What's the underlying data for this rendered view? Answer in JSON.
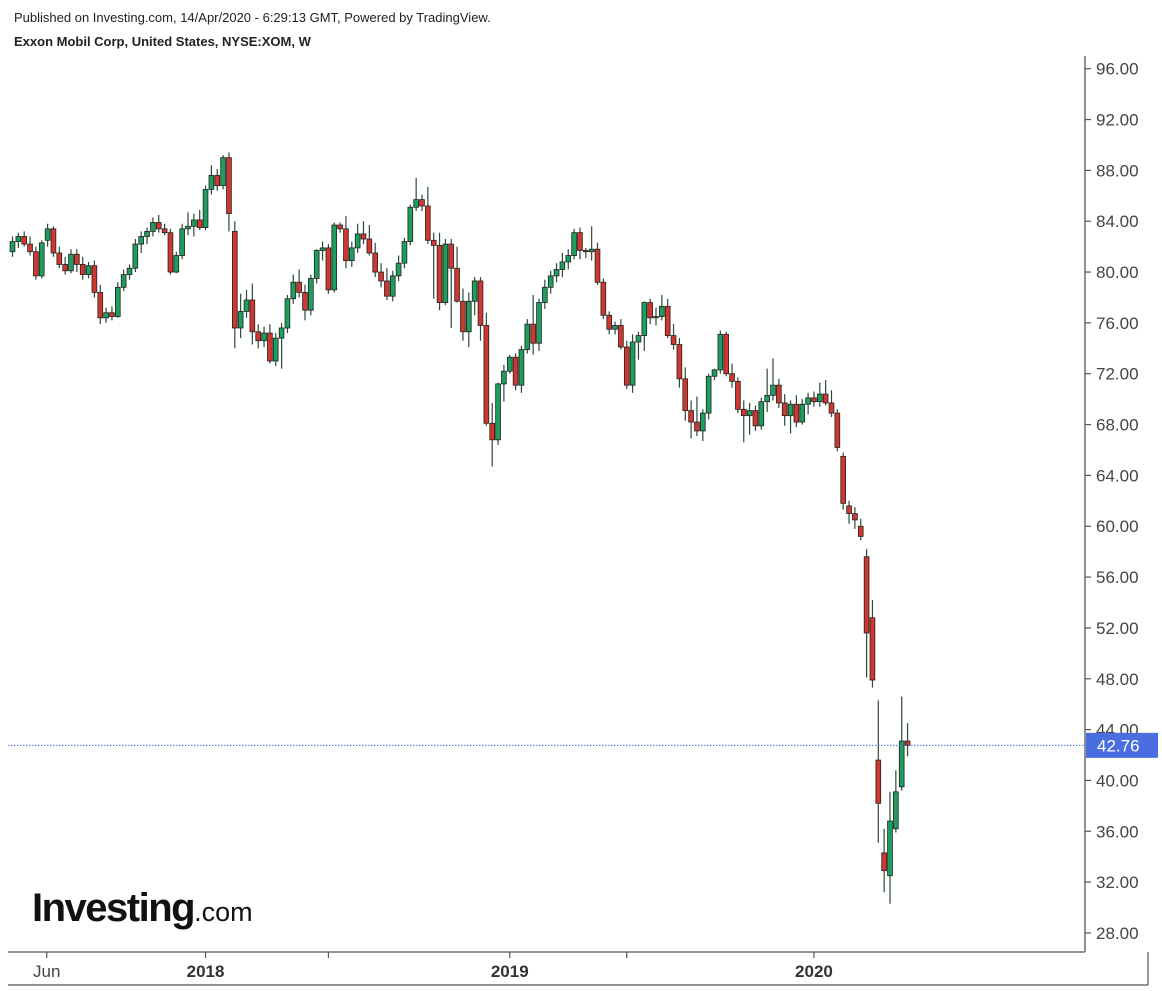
{
  "header": {
    "published": "Published on Investing.com, 14/Apr/2020 - 6:29:13 GMT, Powered by TradingView.",
    "symbol_line": "Exxon Mobil Corp, United States, NYSE:XOM, W"
  },
  "logo": {
    "main": "Investing",
    "suffix": ".com"
  },
  "colors": {
    "up": "#1e9e5e",
    "down": "#d0372f",
    "wick": "#2b4a3a",
    "price_line": "#4a6ee0",
    "axis": "#555555"
  },
  "chart_data": {
    "type": "candlestick",
    "interval": "W",
    "ylim": [
      26.5,
      97
    ],
    "y_ticks": [
      "96.00",
      "92.00",
      "88.00",
      "84.00",
      "80.00",
      "76.00",
      "72.00",
      "68.00",
      "64.00",
      "60.00",
      "56.00",
      "52.00",
      "48.00",
      "44.00",
      "40.00",
      "36.00",
      "32.00",
      "28.00"
    ],
    "x_ticks": [
      {
        "label": "Jun",
        "index": 5,
        "bold": false
      },
      {
        "label": "2018",
        "index": 33,
        "bold": true
      },
      {
        "label": "",
        "index": 54,
        "bold": false
      },
      {
        "label": "2019",
        "index": 85,
        "bold": true
      },
      {
        "label": "",
        "index": 105,
        "bold": false
      },
      {
        "label": "2020",
        "index": 137,
        "bold": true
      }
    ],
    "last_price": "42.76",
    "last_value": 42.76,
    "ohlc": [
      [
        81.6,
        82.8,
        81.2,
        82.4
      ],
      [
        82.4,
        83.1,
        81.9,
        82.8
      ],
      [
        82.8,
        83.2,
        82.0,
        82.2
      ],
      [
        82.2,
        82.8,
        81.3,
        81.6
      ],
      [
        81.6,
        82.0,
        79.4,
        79.7
      ],
      [
        79.7,
        82.5,
        79.5,
        82.3
      ],
      [
        82.5,
        83.8,
        82.0,
        83.4
      ],
      [
        83.4,
        83.6,
        81.2,
        81.5
      ],
      [
        81.5,
        82.0,
        80.3,
        80.6
      ],
      [
        80.6,
        81.2,
        79.8,
        80.1
      ],
      [
        80.1,
        81.8,
        79.9,
        81.4
      ],
      [
        81.4,
        81.8,
        80.0,
        80.6
      ],
      [
        80.6,
        81.2,
        79.4,
        79.8
      ],
      [
        79.8,
        80.8,
        79.5,
        80.5
      ],
      [
        80.5,
        80.9,
        78.0,
        78.4
      ],
      [
        78.4,
        79.0,
        75.9,
        76.4
      ],
      [
        76.4,
        77.2,
        76.0,
        76.8
      ],
      [
        76.8,
        77.3,
        76.2,
        76.5
      ],
      [
        76.5,
        79.2,
        76.4,
        78.8
      ],
      [
        78.8,
        80.2,
        78.5,
        79.8
      ],
      [
        79.8,
        80.6,
        79.4,
        80.3
      ],
      [
        80.3,
        82.6,
        80.0,
        82.2
      ],
      [
        82.2,
        83.2,
        81.5,
        82.8
      ],
      [
        82.8,
        83.5,
        82.2,
        83.2
      ],
      [
        83.2,
        84.3,
        82.8,
        83.9
      ],
      [
        83.9,
        84.5,
        83.1,
        83.4
      ],
      [
        83.4,
        83.8,
        82.9,
        83.1
      ],
      [
        83.1,
        83.4,
        79.8,
        80.0
      ],
      [
        80.0,
        81.6,
        79.9,
        81.3
      ],
      [
        81.3,
        83.8,
        81.0,
        83.4
      ],
      [
        83.4,
        84.7,
        82.9,
        83.6
      ],
      [
        83.6,
        84.6,
        82.8,
        84.1
      ],
      [
        84.1,
        84.9,
        83.3,
        83.5
      ],
      [
        83.5,
        86.8,
        83.3,
        86.5
      ],
      [
        86.5,
        88.4,
        86.1,
        87.6
      ],
      [
        87.6,
        88.1,
        86.4,
        86.8
      ],
      [
        86.8,
        89.2,
        86.5,
        89.0
      ],
      [
        89.0,
        89.4,
        83.2,
        84.6
      ],
      [
        83.2,
        84.0,
        74.0,
        75.6
      ],
      [
        75.6,
        78.3,
        74.8,
        76.9
      ],
      [
        76.9,
        78.6,
        76.4,
        77.8
      ],
      [
        77.8,
        79.1,
        74.3,
        75.3
      ],
      [
        75.3,
        75.9,
        74.0,
        74.6
      ],
      [
        74.6,
        75.7,
        74.1,
        75.2
      ],
      [
        75.2,
        75.9,
        72.8,
        73.0
      ],
      [
        73.0,
        75.2,
        72.6,
        74.8
      ],
      [
        74.8,
        76.0,
        72.4,
        75.6
      ],
      [
        75.6,
        78.2,
        75.2,
        77.9
      ],
      [
        77.9,
        79.8,
        77.5,
        79.2
      ],
      [
        79.2,
        80.2,
        78.0,
        78.4
      ],
      [
        78.4,
        79.0,
        76.2,
        77.0
      ],
      [
        77.0,
        79.8,
        76.6,
        79.5
      ],
      [
        79.5,
        81.8,
        79.1,
        81.7
      ],
      [
        81.7,
        82.4,
        80.9,
        81.9
      ],
      [
        81.9,
        82.2,
        78.3,
        78.6
      ],
      [
        78.6,
        83.9,
        78.4,
        83.7
      ],
      [
        83.7,
        83.9,
        83.1,
        83.4
      ],
      [
        83.4,
        84.4,
        80.3,
        80.9
      ],
      [
        80.9,
        82.4,
        80.4,
        81.9
      ],
      [
        81.9,
        83.8,
        81.5,
        83.0
      ],
      [
        83.0,
        84.0,
        82.2,
        82.6
      ],
      [
        82.6,
        83.7,
        81.3,
        81.5
      ],
      [
        81.5,
        82.3,
        79.6,
        80.0
      ],
      [
        80.0,
        80.7,
        78.8,
        79.3
      ],
      [
        79.3,
        80.3,
        77.8,
        78.1
      ],
      [
        78.1,
        80.1,
        77.7,
        79.7
      ],
      [
        79.7,
        81.3,
        79.3,
        80.7
      ],
      [
        80.7,
        82.7,
        80.3,
        82.4
      ],
      [
        82.4,
        85.3,
        82.1,
        85.1
      ],
      [
        85.1,
        87.4,
        84.8,
        85.7
      ],
      [
        85.7,
        86.1,
        84.8,
        85.2
      ],
      [
        85.2,
        86.7,
        82.2,
        82.5
      ],
      [
        82.5,
        83.1,
        77.9,
        82.1
      ],
      [
        82.1,
        83.1,
        77.0,
        77.6
      ],
      [
        77.6,
        82.6,
        77.4,
        82.2
      ],
      [
        82.2,
        82.6,
        75.6,
        80.3
      ],
      [
        80.3,
        82.0,
        77.6,
        77.7
      ],
      [
        77.7,
        78.7,
        74.6,
        75.3
      ],
      [
        75.3,
        78.4,
        74.1,
        77.7
      ],
      [
        77.7,
        79.6,
        76.6,
        79.3
      ],
      [
        79.3,
        79.6,
        74.6,
        75.8
      ],
      [
        75.8,
        76.8,
        67.9,
        68.1
      ],
      [
        68.1,
        69.7,
        64.7,
        66.8
      ],
      [
        66.8,
        71.3,
        66.4,
        71.2
      ],
      [
        71.2,
        72.7,
        69.8,
        72.2
      ],
      [
        72.2,
        73.5,
        72.0,
        73.3
      ],
      [
        73.3,
        73.6,
        70.7,
        71.1
      ],
      [
        71.1,
        74.2,
        70.5,
        73.9
      ],
      [
        73.9,
        76.3,
        73.6,
        75.9
      ],
      [
        75.9,
        78.2,
        73.5,
        74.4
      ],
      [
        74.4,
        77.9,
        73.8,
        77.6
      ],
      [
        77.6,
        79.4,
        77.1,
        78.8
      ],
      [
        78.8,
        80.1,
        78.3,
        79.7
      ],
      [
        79.7,
        80.7,
        79.2,
        80.2
      ],
      [
        80.2,
        81.5,
        79.6,
        80.8
      ],
      [
        80.8,
        81.8,
        80.2,
        81.3
      ],
      [
        81.3,
        83.4,
        81.0,
        83.1
      ],
      [
        83.1,
        83.5,
        81.0,
        81.7
      ],
      [
        81.7,
        81.9,
        81.1,
        81.6
      ],
      [
        81.6,
        83.6,
        80.9,
        81.8
      ],
      [
        81.8,
        82.3,
        79.0,
        79.2
      ],
      [
        79.2,
        79.5,
        76.3,
        76.6
      ],
      [
        76.6,
        76.9,
        75.1,
        75.5
      ],
      [
        75.5,
        76.1,
        75.1,
        75.8
      ],
      [
        75.8,
        76.3,
        73.9,
        74.1
      ],
      [
        74.1,
        74.6,
        70.8,
        71.1
      ],
      [
        71.1,
        75.1,
        70.5,
        74.5
      ],
      [
        74.5,
        75.3,
        73.1,
        75.0
      ],
      [
        75.0,
        77.7,
        73.8,
        77.6
      ],
      [
        77.6,
        77.9,
        75.9,
        76.4
      ],
      [
        76.4,
        77.2,
        75.8,
        76.5
      ],
      [
        76.5,
        78.2,
        76.2,
        77.3
      ],
      [
        77.3,
        77.9,
        74.8,
        75.0
      ],
      [
        75.0,
        75.9,
        73.9,
        74.3
      ],
      [
        74.3,
        74.8,
        70.9,
        71.6
      ],
      [
        71.6,
        72.5,
        68.3,
        69.1
      ],
      [
        69.1,
        69.9,
        66.9,
        68.2
      ],
      [
        68.2,
        70.2,
        67.1,
        67.5
      ],
      [
        67.5,
        69.2,
        66.7,
        68.9
      ],
      [
        68.9,
        72.0,
        68.4,
        71.8
      ],
      [
        71.8,
        72.4,
        71.5,
        72.3
      ],
      [
        72.3,
        75.4,
        72.0,
        75.1
      ],
      [
        75.1,
        75.3,
        71.8,
        72.0
      ],
      [
        72.0,
        72.8,
        70.9,
        71.4
      ],
      [
        71.4,
        71.7,
        68.9,
        69.2
      ],
      [
        69.2,
        69.9,
        66.6,
        68.7
      ],
      [
        68.7,
        69.7,
        67.2,
        69.1
      ],
      [
        69.1,
        69.5,
        67.5,
        67.9
      ],
      [
        67.9,
        70.1,
        67.6,
        69.8
      ],
      [
        69.8,
        72.4,
        69.0,
        70.3
      ],
      [
        70.3,
        73.2,
        69.9,
        71.1
      ],
      [
        71.1,
        71.6,
        69.3,
        69.7
      ],
      [
        69.7,
        70.4,
        67.9,
        68.7
      ],
      [
        68.7,
        69.9,
        67.3,
        69.6
      ],
      [
        69.6,
        70.3,
        67.8,
        68.2
      ],
      [
        68.2,
        70.0,
        68.0,
        69.6
      ],
      [
        69.6,
        70.5,
        68.8,
        70.1
      ],
      [
        70.1,
        70.6,
        69.4,
        69.8
      ],
      [
        69.8,
        71.3,
        69.4,
        70.4
      ],
      [
        70.4,
        71.5,
        69.5,
        69.7
      ],
      [
        69.7,
        70.7,
        68.6,
        68.9
      ],
      [
        68.9,
        69.2,
        65.9,
        66.2
      ],
      [
        65.5,
        65.8,
        61.3,
        61.8
      ],
      [
        61.6,
        62.0,
        60.2,
        61.0
      ],
      [
        61.0,
        61.5,
        59.8,
        60.5
      ],
      [
        60.0,
        60.6,
        58.9,
        59.2
      ],
      [
        57.6,
        58.2,
        48.1,
        51.6
      ],
      [
        52.8,
        54.2,
        47.3,
        47.9
      ],
      [
        41.6,
        46.3,
        35.1,
        38.2
      ],
      [
        34.3,
        36.2,
        31.2,
        32.9
      ],
      [
        32.5,
        39.1,
        30.3,
        36.8
      ],
      [
        36.2,
        40.8,
        35.9,
        39.1
      ],
      [
        39.5,
        46.6,
        39.2,
        43.1
      ],
      [
        43.1,
        44.5,
        41.9,
        42.76
      ]
    ]
  }
}
